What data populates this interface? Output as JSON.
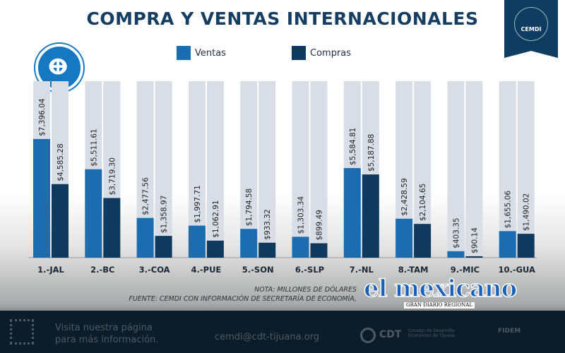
{
  "title": "COMPRA Y VENTAS INTERNACIONALES",
  "badge": "CEMDI",
  "chart_data": {
    "type": "bar",
    "categories": [
      "1.-JAL",
      "2.-BC",
      "3.-COA",
      "4.-PUE",
      "5.-SON",
      "6.-SLP",
      "7.-NL",
      "8.-TAM",
      "9.-MIC",
      "10.-GUA"
    ],
    "series": [
      {
        "name": "Ventas",
        "color": "#1c6db0",
        "values": [
          7396.04,
          5511.61,
          2477.56,
          1997.71,
          1794.58,
          1303.34,
          5584.81,
          2428.59,
          403.35,
          1655.06
        ],
        "labels": [
          "$7,396.04",
          "$5,511.61",
          "$2,477.56",
          "$1,997.71",
          "$1,794.58",
          "$1,303.34",
          "$5,584.81",
          "$2,428.59",
          "$403.35",
          "$1,655.06"
        ]
      },
      {
        "name": "Compras",
        "color": "#0f3a5e",
        "values": [
          4585.28,
          3719.3,
          1358.97,
          1062.91,
          933.32,
          899.49,
          5187.88,
          2104.65,
          90.14,
          1490.02
        ],
        "labels": [
          "$4,585.28",
          "$3,719.30",
          "$1,358.97",
          "$1,062.91",
          "$933.32",
          "$899.49",
          "$5,187.88",
          "$2,104.65",
          "$90.14",
          "$1,490.02"
        ]
      }
    ],
    "ylim": [
      0,
      11000
    ],
    "legend": "top",
    "note": "NOTA: MILLONES DE DÓLARES",
    "source": "FUENTE: CEMDI CON INFORMACIÓN DE SECRETARÍA DE ECONOMÍA,"
  },
  "footer": {
    "visit1": "Visita nuestra página",
    "visit2": "para más información.",
    "email": "cemdi@cdt-tijuana.org",
    "cdt": "CDT",
    "cdt_sub": "Consejo de Desarrollo Económico de Tijuana",
    "fidem": "FIDEM"
  },
  "watermark": {
    "name": "el mexicano",
    "sub": "GRAN DIARIO REGIONAL"
  }
}
